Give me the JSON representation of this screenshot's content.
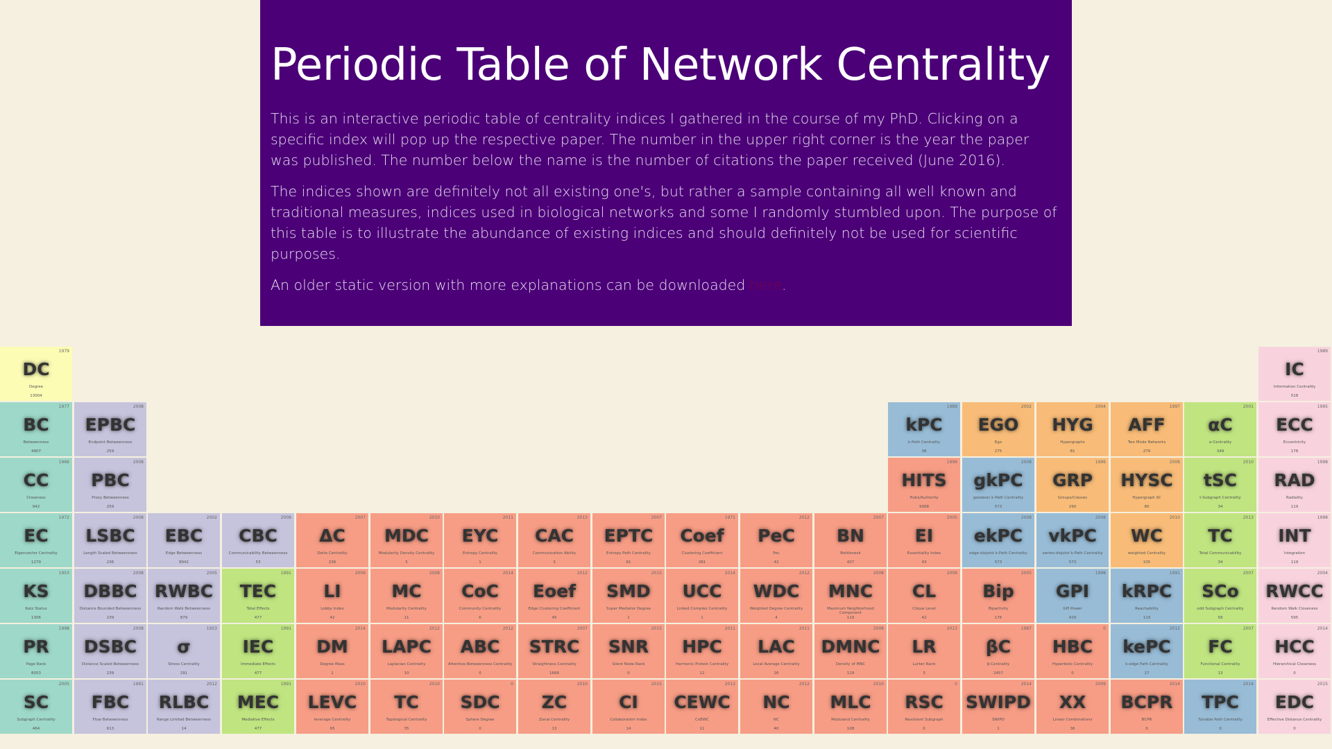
{
  "header": {
    "title": "Periodic Table of Network Centrality",
    "p1": "This is an interactive periodic table of centrality indices I gathered in the course of my PhD. Clicking on a specific index will pop up the respective paper. The number in the upper right corner is the year the paper was published. The number below the name is the number of citations the paper received (June 2016).",
    "p2": "The indices shown are definitely not all existing one's, but rather a sample containing all well known and traditional measures, indices used in biological networks and some I randomly stumbled upon. The purpose of this table is to illustrate the abundance of existing indices and should definitely not be used for scientific purposes.",
    "p3_text": "An older static version with more explanations can be downloaded ",
    "p3_link": "here",
    "p3_end": "."
  },
  "colors": {
    "header_bg": "#4b0077",
    "page_bg": "#f5f0df",
    "teal": "#9ed8c8",
    "lavender": "#c6c3dc",
    "salmon": "#f79d86",
    "green": "#bfe480",
    "orange": "#f8bc78",
    "blue": "#98bcd6",
    "pink": "#f8d3de",
    "yellow": "#fcfcb4"
  },
  "elements": [
    {
      "sym": "DC",
      "name": "Degree",
      "year": "1979",
      "cit": "13004",
      "row": 0,
      "col": 0,
      "color": "yellow"
    },
    {
      "sym": "IC",
      "name": "Information Centrality",
      "year": "1989",
      "cit": "518",
      "row": 0,
      "col": 17,
      "color": "pink"
    },
    {
      "sym": "BC",
      "name": "Betweenness",
      "year": "1977",
      "cit": "4907",
      "row": 1,
      "col": 0,
      "color": "teal"
    },
    {
      "sym": "EPBC",
      "name": "Endpoint Betweenness",
      "year": "2008",
      "cit": "259",
      "row": 1,
      "col": 1,
      "color": "lavender"
    },
    {
      "sym": "kPC",
      "name": "k-Path Centrality",
      "year": "1989",
      "cit": "38",
      "row": 1,
      "col": 12,
      "color": "blue"
    },
    {
      "sym": "EGO",
      "name": "Ego",
      "year": "2002",
      "cit": "275",
      "row": 1,
      "col": 13,
      "color": "orange"
    },
    {
      "sym": "HYG",
      "name": "Hypergraphs",
      "year": "2004",
      "cit": "81",
      "row": 1,
      "col": 14,
      "color": "orange"
    },
    {
      "sym": "AFF",
      "name": "Two Mode Networks",
      "year": "1997",
      "cit": "279",
      "row": 1,
      "col": 15,
      "color": "orange"
    },
    {
      "sym": "αC",
      "name": "α-Centrality",
      "year": "2001",
      "cit": "349",
      "row": 1,
      "col": 16,
      "color": "green"
    },
    {
      "sym": "ECC",
      "name": "Eccentricity",
      "year": "1995",
      "cit": "178",
      "row": 1,
      "col": 17,
      "color": "pink"
    },
    {
      "sym": "CC",
      "name": "Closeness",
      "year": "1966",
      "cit": "942",
      "row": 2,
      "col": 0,
      "color": "teal"
    },
    {
      "sym": "PBC",
      "name": "Proxy Betweenness",
      "year": "2008",
      "cit": "259",
      "row": 2,
      "col": 1,
      "color": "lavender"
    },
    {
      "sym": "HITS",
      "name": "Hubs/Authority",
      "year": "1999",
      "cit": "9068",
      "row": 2,
      "col": 12,
      "color": "salmon"
    },
    {
      "sym": "gkPC",
      "name": "geodesic k-Path Centrality",
      "year": "2008",
      "cit": "573",
      "row": 2,
      "col": 13,
      "color": "blue"
    },
    {
      "sym": "GRP",
      "name": "Groups/Classes",
      "year": "1999",
      "cit": "290",
      "row": 2,
      "col": 14,
      "color": "orange"
    },
    {
      "sym": "HYSC",
      "name": "Hypergraph SC",
      "year": "2006",
      "cit": "80",
      "row": 2,
      "col": 15,
      "color": "orange"
    },
    {
      "sym": "tSC",
      "name": "t-Subgraph Centrality",
      "year": "2010",
      "cit": "34",
      "row": 2,
      "col": 16,
      "color": "green"
    },
    {
      "sym": "RAD",
      "name": "Radiality",
      "year": "1998",
      "cit": "119",
      "row": 2,
      "col": 17,
      "color": "pink"
    },
    {
      "sym": "EC",
      "name": "Eigenvector Centrality",
      "year": "1972",
      "cit": "1279",
      "row": 3,
      "col": 0,
      "color": "teal"
    },
    {
      "sym": "LSBC",
      "name": "Length Scaled Betweenness",
      "year": "2008",
      "cit": "236",
      "row": 3,
      "col": 1,
      "color": "lavender"
    },
    {
      "sym": "EBC",
      "name": "Edge Betweenness",
      "year": "2002",
      "cit": "8942",
      "row": 3,
      "col": 2,
      "color": "lavender"
    },
    {
      "sym": "CBC",
      "name": "Communicability Betweenness",
      "year": "2009",
      "cit": "53",
      "row": 3,
      "col": 3,
      "color": "lavender"
    },
    {
      "sym": "ΔC",
      "name": "Delta Centrality",
      "year": "2007",
      "cit": "236",
      "row": 3,
      "col": 4,
      "color": "salmon"
    },
    {
      "sym": "MDC",
      "name": "Modularity Density Centrality",
      "year": "2010",
      "cit": "5",
      "row": 3,
      "col": 5,
      "color": "salmon"
    },
    {
      "sym": "EYC",
      "name": "Entropy Centrality",
      "year": "2011",
      "cit": "1",
      "row": 3,
      "col": 6,
      "color": "salmon"
    },
    {
      "sym": "CAC",
      "name": "Communication Ability",
      "year": "2013",
      "cit": "3",
      "row": 3,
      "col": 7,
      "color": "salmon"
    },
    {
      "sym": "EPTC",
      "name": "Entropy Path Centrality",
      "year": "2007",
      "cit": "61",
      "row": 3,
      "col": 8,
      "color": "salmon"
    },
    {
      "sym": "Coef",
      "name": "Clustering Coefficient",
      "year": "1971",
      "cit": "281",
      "row": 3,
      "col": 9,
      "color": "salmon"
    },
    {
      "sym": "PeC",
      "name": "Pec",
      "year": "2012",
      "cit": "42",
      "row": 3,
      "col": 10,
      "color": "salmon"
    },
    {
      "sym": "BN",
      "name": "Bottleneck",
      "year": "2007",
      "cit": "427",
      "row": 3,
      "col": 11,
      "color": "salmon"
    },
    {
      "sym": "EI",
      "name": "Essentiality Index",
      "year": "2005",
      "cit": "43",
      "row": 3,
      "col": 12,
      "color": "salmon"
    },
    {
      "sym": "ekPC",
      "name": "edge-disjoint k-Path Centrality",
      "year": "2008",
      "cit": "573",
      "row": 3,
      "col": 13,
      "color": "blue"
    },
    {
      "sym": "vkPC",
      "name": "vertex-disjoint k-Path Centrality",
      "year": "2008",
      "cit": "573",
      "row": 3,
      "col": 14,
      "color": "blue"
    },
    {
      "sym": "WC",
      "name": "weighted Centrality",
      "year": "2010",
      "cit": "105",
      "row": 3,
      "col": 15,
      "color": "orange"
    },
    {
      "sym": "TC",
      "name": "Total Communicability",
      "year": "2013",
      "cit": "34",
      "row": 3,
      "col": 16,
      "color": "green"
    },
    {
      "sym": "INT",
      "name": "Integration",
      "year": "1998",
      "cit": "119",
      "row": 3,
      "col": 17,
      "color": "pink"
    },
    {
      "sym": "KS",
      "name": "Katz Status",
      "year": "1953",
      "cit": "1306",
      "row": 4,
      "col": 0,
      "color": "teal"
    },
    {
      "sym": "DBBC",
      "name": "Distance Bounded Betweenness",
      "year": "2008",
      "cit": "239",
      "row": 4,
      "col": 1,
      "color": "lavender"
    },
    {
      "sym": "RWBC",
      "name": "Random Walk Betweenness",
      "year": "2005",
      "cit": "879",
      "row": 4,
      "col": 2,
      "color": "lavender"
    },
    {
      "sym": "TEC",
      "name": "Total Effects",
      "year": "1991",
      "cit": "477",
      "row": 4,
      "col": 3,
      "color": "green"
    },
    {
      "sym": "LI",
      "name": "Lobby Index",
      "year": "2009",
      "cit": "42",
      "row": 4,
      "col": 4,
      "color": "salmon"
    },
    {
      "sym": "MC",
      "name": "Modularity Centrality",
      "year": "2008",
      "cit": "11",
      "row": 4,
      "col": 5,
      "color": "salmon"
    },
    {
      "sym": "CoC",
      "name": "Community Centrality",
      "year": "2014",
      "cit": "6",
      "row": 4,
      "col": 6,
      "color": "salmon"
    },
    {
      "sym": "Eoef",
      "name": "Edge Clustering Coefficient",
      "year": "2012",
      "cit": "45",
      "row": 4,
      "col": 7,
      "color": "salmon"
    },
    {
      "sym": "SMD",
      "name": "Super Mediator Degree",
      "year": "2015",
      "cit": "1",
      "row": 4,
      "col": 8,
      "color": "salmon"
    },
    {
      "sym": "UCC",
      "name": "Linked Complex Centrality",
      "year": "2014",
      "cit": "1",
      "row": 4,
      "col": 9,
      "color": "salmon"
    },
    {
      "sym": "WDC",
      "name": "Weighted Degree Centrality",
      "year": "2012",
      "cit": "4",
      "row": 4,
      "col": 10,
      "color": "salmon"
    },
    {
      "sym": "MNC",
      "name": "Maximum Neighborhood Component",
      "year": "2008",
      "cit": "119",
      "row": 4,
      "col": 11,
      "color": "salmon"
    },
    {
      "sym": "CL",
      "name": "Clique Level",
      "year": "2009",
      "cit": "42",
      "row": 4,
      "col": 12,
      "color": "salmon"
    },
    {
      "sym": "Bip",
      "name": "Bipartivity",
      "year": "2005",
      "cit": "176",
      "row": 4,
      "col": 13,
      "color": "salmon"
    },
    {
      "sym": "GPI",
      "name": "GPI Power",
      "year": "1998",
      "cit": "429",
      "row": 4,
      "col": 14,
      "color": "blue"
    },
    {
      "sym": "kRPC",
      "name": "Reachability",
      "year": "1991",
      "cit": "119",
      "row": 4,
      "col": 15,
      "color": "blue"
    },
    {
      "sym": "SCo",
      "name": "odd Subgraph Centrality",
      "year": "2007",
      "cit": "58",
      "row": 4,
      "col": 16,
      "color": "green"
    },
    {
      "sym": "RWCC",
      "name": "Random Walk Closeness",
      "year": "2004",
      "cit": "595",
      "row": 4,
      "col": 17,
      "color": "pink"
    },
    {
      "sym": "PR",
      "name": "Page Rank",
      "year": "1998",
      "cit": "8053",
      "row": 5,
      "col": 0,
      "color": "teal"
    },
    {
      "sym": "DSBC",
      "name": "Distance Scaled Betweenness",
      "year": "2008",
      "cit": "239",
      "row": 5,
      "col": 1,
      "color": "lavender"
    },
    {
      "sym": "σ",
      "name": "Stress Centrality",
      "year": "1953",
      "cit": "291",
      "row": 5,
      "col": 2,
      "color": "lavender"
    },
    {
      "sym": "IEC",
      "name": "Immediate Effects",
      "year": "1991",
      "cit": "477",
      "row": 5,
      "col": 3,
      "color": "green"
    },
    {
      "sym": "DM",
      "name": "Degree Mass",
      "year": "2014",
      "cit": "1",
      "row": 5,
      "col": 4,
      "color": "salmon"
    },
    {
      "sym": "LAPC",
      "name": "Laplacian Centrality",
      "year": "2012",
      "cit": "10",
      "row": 5,
      "col": 5,
      "color": "salmon"
    },
    {
      "sym": "ABC",
      "name": "Attentive Betweenness Centrality",
      "year": "2012",
      "cit": "0",
      "row": 5,
      "col": 6,
      "color": "salmon"
    },
    {
      "sym": "STRC",
      "name": "Straightness Centrality",
      "year": "2007",
      "cit": "1666",
      "row": 5,
      "col": 7,
      "color": "salmon"
    },
    {
      "sym": "SNR",
      "name": "Silent Node Rank",
      "year": "2015",
      "cit": "0",
      "row": 5,
      "col": 8,
      "color": "salmon"
    },
    {
      "sym": "HPC",
      "name": "Harmonic Protein Centrality",
      "year": "2011",
      "cit": "12",
      "row": 5,
      "col": 9,
      "color": "salmon"
    },
    {
      "sym": "LAC",
      "name": "Local Average Centrality",
      "year": "2011",
      "cit": "26",
      "row": 5,
      "col": 10,
      "color": "salmon"
    },
    {
      "sym": "DMNC",
      "name": "Density of MNC",
      "year": "2008",
      "cit": "119",
      "row": 5,
      "col": 11,
      "color": "salmon"
    },
    {
      "sym": "LR",
      "name": "Lurker Rank",
      "year": "2013",
      "cit": "3",
      "row": 5,
      "col": 12,
      "color": "salmon"
    },
    {
      "sym": "βC",
      "name": "β-Centrality",
      "year": "1987",
      "cit": "2457",
      "row": 5,
      "col": 13,
      "color": "salmon"
    },
    {
      "sym": "HBC",
      "name": "Hyperbolic Centrality",
      "year": "0",
      "cit": "0",
      "row": 5,
      "col": 14,
      "color": "salmon"
    },
    {
      "sym": "kePC",
      "name": "k-edge Path Centrality",
      "year": "2012",
      "cit": "27",
      "row": 5,
      "col": 15,
      "color": "blue"
    },
    {
      "sym": "FC",
      "name": "Functional Centrality",
      "year": "2007",
      "cit": "13",
      "row": 5,
      "col": 16,
      "color": "green"
    },
    {
      "sym": "HCC",
      "name": "Hierarchical Closeness",
      "year": "2014",
      "cit": "0",
      "row": 5,
      "col": 17,
      "color": "pink"
    },
    {
      "sym": "SC",
      "name": "Subgraph Centrality",
      "year": "2005",
      "cit": "464",
      "row": 6,
      "col": 0,
      "color": "teal"
    },
    {
      "sym": "FBC",
      "name": "Flow Betweenness",
      "year": "1991",
      "cit": "613",
      "row": 6,
      "col": 1,
      "color": "lavender"
    },
    {
      "sym": "RLBC",
      "name": "Range Limited Betweenness",
      "year": "2012",
      "cit": "14",
      "row": 6,
      "col": 2,
      "color": "lavender"
    },
    {
      "sym": "MEC",
      "name": "Mediative Effects",
      "year": "1991",
      "cit": "477",
      "row": 6,
      "col": 3,
      "color": "green"
    },
    {
      "sym": "LEVC",
      "name": "leverage Centrality",
      "year": "2010",
      "cit": "65",
      "row": 6,
      "col": 4,
      "color": "salmon"
    },
    {
      "sym": "TC",
      "name": "Topological Centrality",
      "year": "2010",
      "cit": "35",
      "row": 6,
      "col": 5,
      "color": "salmon"
    },
    {
      "sym": "SDC",
      "name": "Sphere Degree",
      "year": "0",
      "cit": "0",
      "row": 6,
      "col": 6,
      "color": "salmon"
    },
    {
      "sym": "ZC",
      "name": "Zonal Centrality",
      "year": "2010",
      "cit": "13",
      "row": 6,
      "col": 7,
      "color": "salmon"
    },
    {
      "sym": "CI",
      "name": "Collaboration Index",
      "year": "2015",
      "cit": "14",
      "row": 6,
      "col": 8,
      "color": "salmon"
    },
    {
      "sym": "CEWC",
      "name": "CoEWC",
      "year": "2013",
      "cit": "11",
      "row": 6,
      "col": 9,
      "color": "salmon"
    },
    {
      "sym": "NC",
      "name": "NC",
      "year": "2012",
      "cit": "40",
      "row": 6,
      "col": 10,
      "color": "salmon"
    },
    {
      "sym": "MLC",
      "name": "Moduland Centrality",
      "year": "2010",
      "cit": "108",
      "row": 6,
      "col": 11,
      "color": "salmon"
    },
    {
      "sym": "RSC",
      "name": "Resolvent Subgraph",
      "year": "0",
      "cit": "0",
      "row": 6,
      "col": 12,
      "color": "salmon"
    },
    {
      "sym": "SWIPD",
      "name": "SWIPD",
      "year": "2014",
      "cit": "1",
      "row": 6,
      "col": 13,
      "color": "salmon"
    },
    {
      "sym": "XX",
      "name": "Linear Combinations",
      "year": "2009",
      "cit": "36",
      "row": 6,
      "col": 14,
      "color": "salmon"
    },
    {
      "sym": "BCPR",
      "name": "BCPR",
      "year": "2014",
      "cit": "0",
      "row": 6,
      "col": 15,
      "color": "salmon"
    },
    {
      "sym": "TPC",
      "name": "Tunable Path Centrality",
      "year": "2014",
      "cit": "0",
      "row": 6,
      "col": 16,
      "color": "blue"
    },
    {
      "sym": "EDC",
      "name": "Effective Distance Centrality",
      "year": "2015",
      "cit": "0",
      "row": 6,
      "col": 17,
      "color": "pink"
    }
  ]
}
